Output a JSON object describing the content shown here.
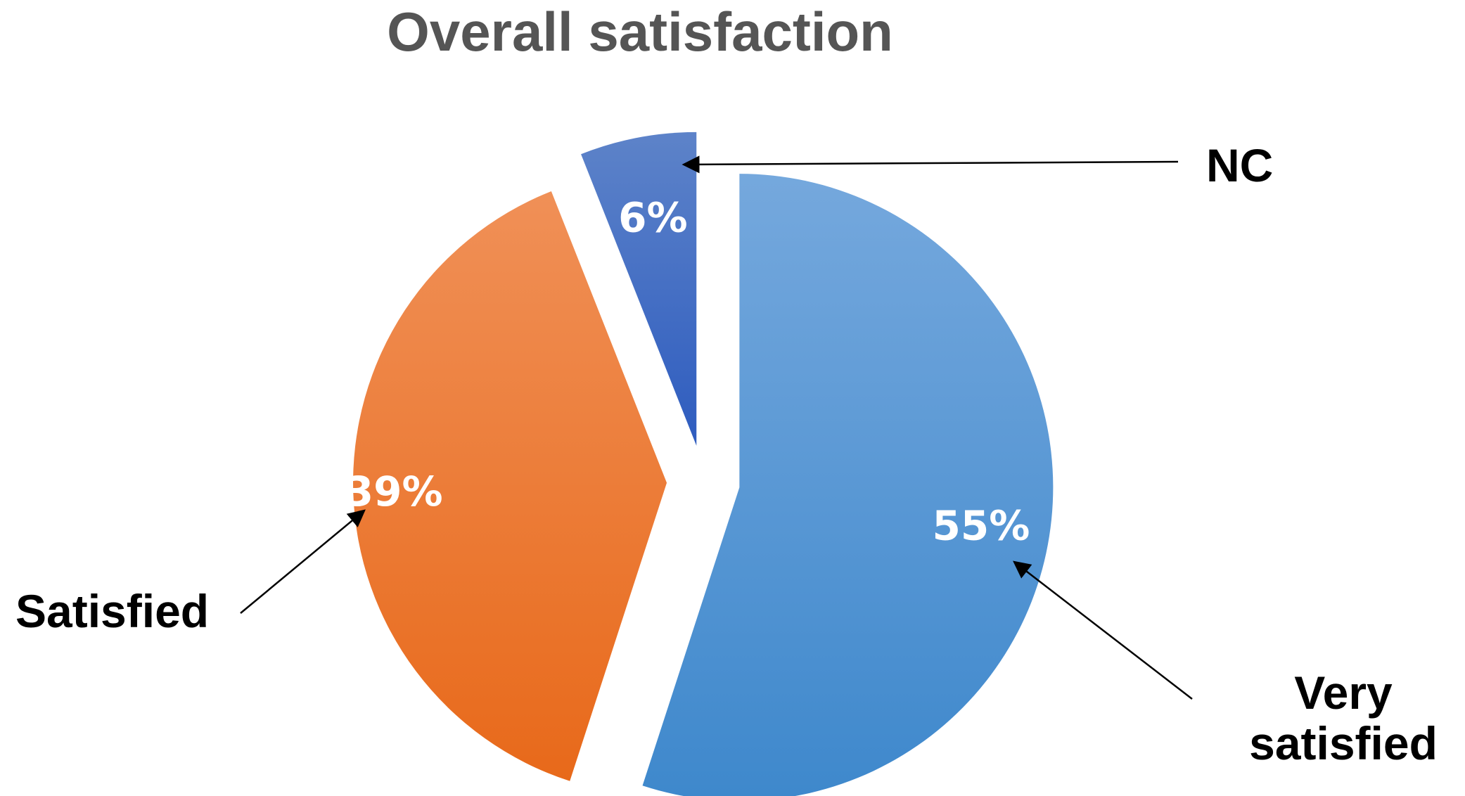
{
  "chart_data": {
    "type": "pie",
    "title": "Overall satisfaction",
    "slices": [
      {
        "label": "Very satisfied",
        "value": 55,
        "value_label": "55%",
        "color_top": "#75a8dd",
        "color_bottom": "#3e88cc"
      },
      {
        "label": "Satisfied",
        "value": 39,
        "value_label": "39%",
        "color_top": "#f09057",
        "color_bottom": "#e8691a"
      },
      {
        "label": "NC",
        "value": 6,
        "value_label": "6%",
        "color_top": "#5d83c9",
        "color_bottom": "#2e5cbf"
      }
    ],
    "exploded": true,
    "legend": "none"
  }
}
